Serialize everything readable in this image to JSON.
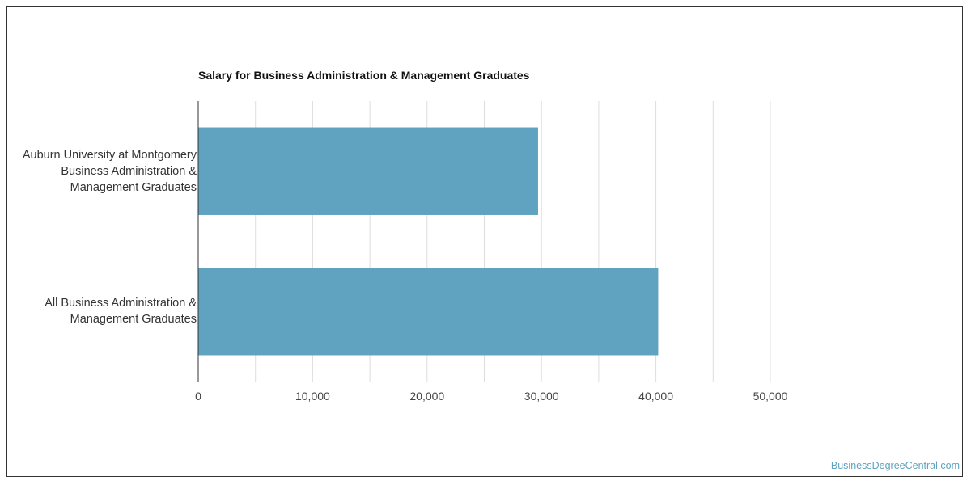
{
  "chart_data": {
    "type": "bar",
    "orientation": "horizontal",
    "title": "Salary for Business Administration & Management Graduates",
    "categories": [
      [
        "Auburn University at Montgomery",
        "Business Administration &",
        "Management Graduates"
      ],
      [
        "All Business Administration &",
        "Management Graduates"
      ]
    ],
    "values": [
      29700,
      40200
    ],
    "xlim": [
      0,
      50000
    ],
    "xticks": [
      "0",
      "10,000",
      "20,000",
      "30,000",
      "40,000",
      "50,000"
    ],
    "xtick_values": [
      0,
      10000,
      20000,
      30000,
      40000,
      50000
    ],
    "grid": true,
    "bar_color": "#5fa3c0"
  },
  "watermark": "BusinessDegreeCentral.com"
}
